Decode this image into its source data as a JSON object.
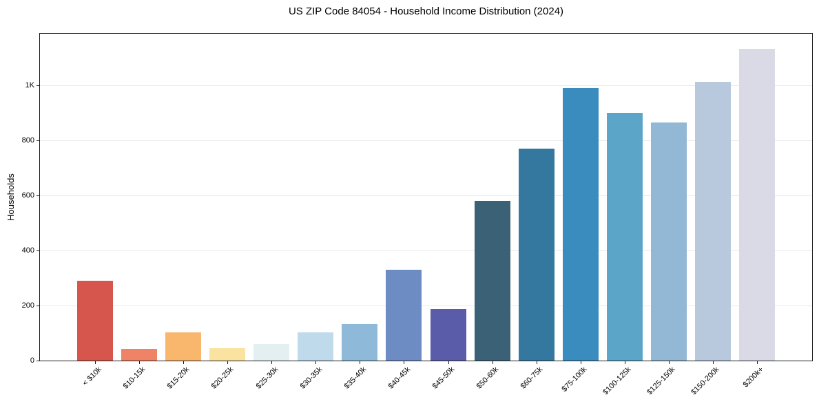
{
  "chart_data": {
    "type": "bar",
    "title": "US ZIP Code 84054 - Household Income Distribution (2024)",
    "xlabel": "",
    "ylabel": "Households",
    "categories": [
      "< $10k",
      "$10-15k",
      "$15-20k",
      "$20-25k",
      "$25-30k",
      "$30-35k",
      "$35-40k",
      "$40-45k",
      "$45-50k",
      "$50-60k",
      "$60-75k",
      "$75-100k",
      "$100-125k",
      "$125-150k",
      "$150-200k",
      "$200k+"
    ],
    "values": [
      290,
      42,
      102,
      44,
      59,
      102,
      132,
      330,
      187,
      580,
      770,
      990,
      901,
      866,
      1012,
      1132
    ],
    "bar_colors": [
      "#d6564e",
      "#ee8365",
      "#f9b76d",
      "#fae2a0",
      "#e4eff2",
      "#bfdaea",
      "#8fb9d9",
      "#6d8cc3",
      "#5a5caa",
      "#3a6176",
      "#35789f",
      "#3a8cbe",
      "#5ba5c9",
      "#93b8d5",
      "#b9c9dd",
      "#d9dae6"
    ],
    "ylim": [
      0,
      1188
    ],
    "yticks": [
      {
        "value": 0,
        "label": "0"
      },
      {
        "value": 200,
        "label": "200"
      },
      {
        "value": 400,
        "label": "400"
      },
      {
        "value": 600,
        "label": "600"
      },
      {
        "value": 800,
        "label": "800"
      },
      {
        "value": 1000,
        "label": "1K"
      }
    ],
    "grid": "horizontal",
    "gridline_color": "#e8e8e8",
    "spine_color": "#1a1a1a",
    "background": "#ffffff",
    "x_tick_rotation_deg": 45,
    "legend": "none"
  }
}
